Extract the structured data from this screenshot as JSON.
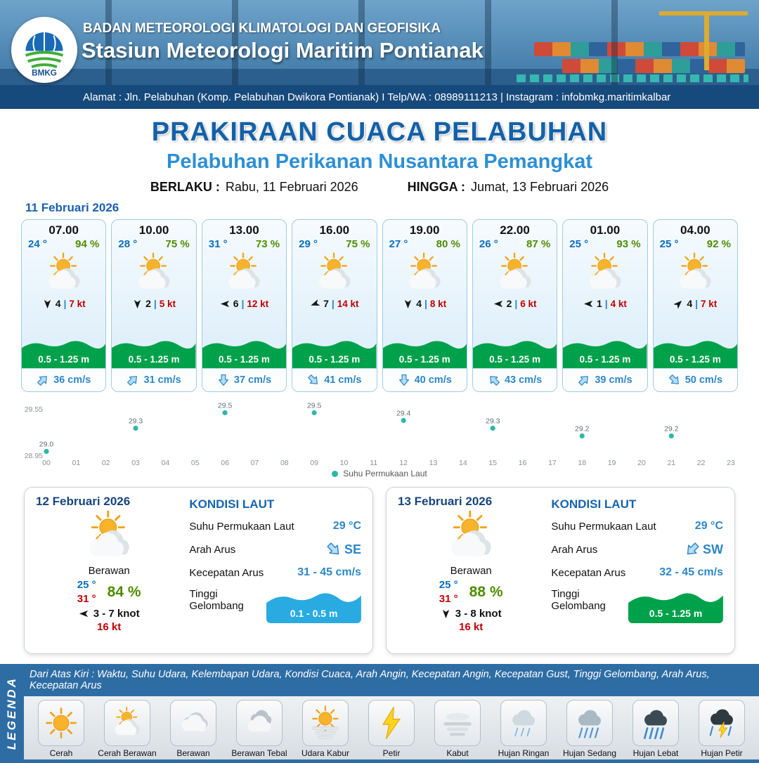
{
  "header": {
    "org": "BADAN METEOROLOGI KLIMATOLOGI DAN GEOFISIKA",
    "station": "Stasiun Meteorologi Maritim Pontianak",
    "address": "Alamat : Jln. Pelabuhan (Komp. Pelabuhan Dwikora Pontianak) I Telp/WA : 08989111213 | Instagram : infobmkg.maritimkalbar",
    "logo_text": "BMKG"
  },
  "title": {
    "main": "PRAKIRAAN CUACA PELABUHAN",
    "sub": "Pelabuhan Perikanan Nusantara Pemangkat",
    "valid_label": "BERLAKU :",
    "valid_value": "Rabu, 11 Februari 2026",
    "until_label": "HINGGA :",
    "until_value": "Jumat, 13 Februari 2026"
  },
  "forecast_date": "11 Februari 2026",
  "labels": {
    "wind_sep": "|"
  },
  "forecast_cards": [
    {
      "time": "07.00",
      "temp": "24 °",
      "rh": "94 %",
      "wind": "4",
      "gust": "7 kt",
      "wave": "0.5 - 1.25 m",
      "wave_color": "#00a14b",
      "current": "36 cm/s",
      "wind_deg": 180,
      "current_deg": 45
    },
    {
      "time": "10.00",
      "temp": "28 °",
      "rh": "75 %",
      "wind": "2",
      "gust": "5 kt",
      "wave": "0.5 - 1.25 m",
      "wave_color": "#00a14b",
      "current": "31 cm/s",
      "wind_deg": 180,
      "current_deg": 45
    },
    {
      "time": "13.00",
      "temp": "31 °",
      "rh": "73 %",
      "wind": "6",
      "gust": "12 kt",
      "wave": "0.5 - 1.25 m",
      "wave_color": "#00a14b",
      "current": "37 cm/s",
      "wind_deg": 270,
      "current_deg": 180
    },
    {
      "time": "16.00",
      "temp": "29 °",
      "rh": "75 %",
      "wind": "7",
      "gust": "14 kt",
      "wave": "0.5 - 1.25 m",
      "wave_color": "#00a14b",
      "current": "41 cm/s",
      "wind_deg": 250,
      "current_deg": 135
    },
    {
      "time": "19.00",
      "temp": "27 °",
      "rh": "80 %",
      "wind": "4",
      "gust": "8 kt",
      "wave": "0.5 - 1.25 m",
      "wave_color": "#00a14b",
      "current": "40 cm/s",
      "wind_deg": 180,
      "current_deg": 180
    },
    {
      "time": "22.00",
      "temp": "26 °",
      "rh": "87 %",
      "wind": "2",
      "gust": "6 kt",
      "wave": "0.5 - 1.25 m",
      "wave_color": "#00a14b",
      "current": "43 cm/s",
      "wind_deg": 270,
      "current_deg": 315
    },
    {
      "time": "01.00",
      "temp": "25 °",
      "rh": "93 %",
      "wind": "1",
      "gust": "4 kt",
      "wave": "0.5 - 1.25 m",
      "wave_color": "#00a14b",
      "current": "39 cm/s",
      "wind_deg": 270,
      "current_deg": 45
    },
    {
      "time": "04.00",
      "temp": "25 °",
      "rh": "92 %",
      "wind": "4",
      "gust": "7 kt",
      "wave": "0.5 - 1.25 m",
      "wave_color": "#00a14b",
      "current": "50 cm/s",
      "wind_deg": 45,
      "current_deg": 135
    }
  ],
  "chart_data": {
    "type": "scatter",
    "series_name": "Suhu Permukaan Laut",
    "x_ticks": [
      "00",
      "01",
      "02",
      "03",
      "04",
      "05",
      "06",
      "07",
      "08",
      "09",
      "10",
      "11",
      "12",
      "13",
      "14",
      "15",
      "16",
      "17",
      "18",
      "19",
      "20",
      "21",
      "22",
      "23"
    ],
    "points": [
      {
        "x": 0,
        "y": 29.0
      },
      {
        "x": 3,
        "y": 29.3
      },
      {
        "x": 6,
        "y": 29.5
      },
      {
        "x": 9,
        "y": 29.5
      },
      {
        "x": 12,
        "y": 29.4
      },
      {
        "x": 15,
        "y": 29.3
      },
      {
        "x": 18,
        "y": 29.2
      },
      {
        "x": 21,
        "y": 29.2
      }
    ],
    "ylim": [
      28.95,
      29.55
    ],
    "point_color": "#2bb8a8",
    "grid": false,
    "legend_position": "bottom"
  },
  "daily_cards": [
    {
      "date": "12 Februari 2026",
      "condition": "Berawan",
      "temp_min": "25 °",
      "temp_max": "31 °",
      "rh": "84 %",
      "wind": "3 - 7 knot",
      "gust": "16 kt",
      "wind_deg": 270,
      "sea": {
        "title": "KONDISI LAUT",
        "sst_label": "Suhu Permukaan Laut",
        "sst_value": "29 °C",
        "dir_label": "Arah Arus",
        "dir_value": "SE",
        "dir_deg": 135,
        "speed_label": "Kecepatan Arus",
        "speed_value": "31 - 45 cm/s",
        "wave_label": "Tinggi Gelombang",
        "wave_value": "0.1 - 0.5 m",
        "wave_color": "#29abe2"
      }
    },
    {
      "date": "13 Februari 2026",
      "condition": "Berawan",
      "temp_min": "25 °",
      "temp_max": "31 °",
      "rh": "88 %",
      "wind": "3 - 8 knot",
      "gust": "16 kt",
      "wind_deg": 180,
      "sea": {
        "title": "KONDISI LAUT",
        "sst_label": "Suhu Permukaan Laut",
        "sst_value": "29 °C",
        "dir_label": "Arah Arus",
        "dir_value": "SW",
        "dir_deg": 225,
        "speed_label": "Kecepatan Arus",
        "speed_value": "32 - 45 cm/s",
        "wave_label": "Tinggi Gelombang",
        "wave_value": "0.5 - 1.25 m",
        "wave_color": "#00a14b"
      }
    }
  ],
  "legend": {
    "note": "Dari Atas Kiri : Waktu, Suhu Udara, Kelembapan Udara, Kondisi Cuaca, Arah Angin, Kecepatan Angin, Kecepatan Gust, Tinggi Gelombang, Arah Arus, Kecepatan Arus",
    "vertical_label": "LEGENDA",
    "items": [
      {
        "label": "Cerah",
        "icon": "sun-icon"
      },
      {
        "label": "Cerah Berawan",
        "icon": "sun-cloud-icon"
      },
      {
        "label": "Berawan",
        "icon": "cloud-icon"
      },
      {
        "label": "Berawan Tebal",
        "icon": "clouds-icon"
      },
      {
        "label": "Udara Kabur",
        "icon": "haze-icon"
      },
      {
        "label": "Petir",
        "icon": "lightning-icon"
      },
      {
        "label": "Kabut",
        "icon": "fog-icon"
      },
      {
        "label": "Hujan Ringan",
        "icon": "light-rain-icon"
      },
      {
        "label": "Hujan Sedang",
        "icon": "moderate-rain-icon"
      },
      {
        "label": "Hujan Lebat",
        "icon": "heavy-rain-icon"
      },
      {
        "label": "Hujan Petir",
        "icon": "thunderstorm-icon"
      }
    ]
  }
}
